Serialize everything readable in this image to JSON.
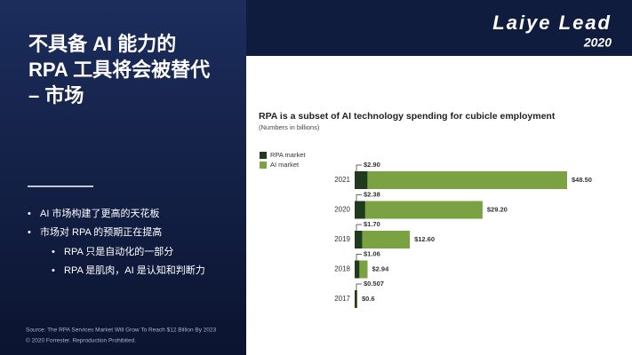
{
  "slide": {
    "title_lines": [
      "不具备 AI 能力的",
      "RPA 工具将会被替代",
      "– 市场"
    ],
    "bullets": [
      "AI 市场构建了更高的天花板",
      "市场对 RPA 的预期正在提高"
    ],
    "sub_bullets": [
      "RPA 只是自动化的一部分",
      "RPA 是肌肉，AI 是认知和判断力"
    ],
    "source": [
      "Source: The RPA Services Market Will Grow To Reach $12 Billion By 2023",
      "© 2020 Forrester. Reproduction Prohibited."
    ],
    "logo": {
      "text": "Laiye Lead",
      "year": "2020"
    }
  },
  "chart_data": {
    "type": "bar",
    "orientation": "horizontal",
    "overlap": true,
    "title": "RPA is a subset of AI technology spending for cubicle employment",
    "subtitle": "(Numbers in billions)",
    "categories": [
      "2021",
      "2020",
      "2019",
      "2018",
      "2017"
    ],
    "series": [
      {
        "name": "RPA market",
        "color": "#1f3a1c",
        "values": [
          2.9,
          2.38,
          1.7,
          1.06,
          0.507
        ],
        "value_labels": [
          "$2.90",
          "$2.38",
          "$1.70",
          "$1.06",
          "$0.507"
        ]
      },
      {
        "name": "AI market",
        "color": "#7ba242",
        "values": [
          48.5,
          29.2,
          12.6,
          2.94,
          0.6
        ],
        "value_labels": [
          "$48.50",
          "$29.20",
          "$12.60",
          "$2.94",
          "$0.6"
        ]
      }
    ],
    "legend": "top-left"
  }
}
